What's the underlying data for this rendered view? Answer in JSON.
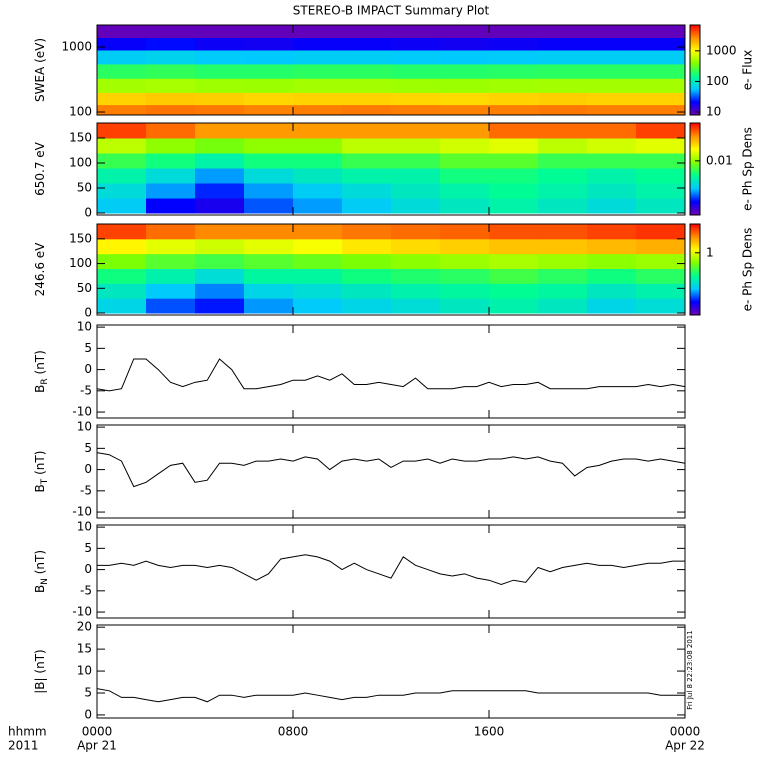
{
  "chart_data": [
    {
      "type": "heatmap",
      "title": "STEREO-B IMPACT Summary Plot",
      "ylabel": "SWEA (eV)",
      "xlim": [
        0,
        24
      ],
      "xbins": [
        0,
        2,
        4,
        6,
        8,
        10,
        12,
        14,
        16,
        18,
        20,
        22,
        24
      ],
      "ylim": [
        90,
        2180
      ],
      "ylog": true,
      "yticks": [
        100,
        1000
      ],
      "ybins": [
        90,
        130,
        200,
        330,
        550,
        900,
        1400,
        2180
      ],
      "values": [
        [
          3000,
          3200,
          3100,
          2900,
          3000,
          3100,
          3000,
          2900,
          3000,
          3100,
          3000,
          3000
        ],
        [
          1500,
          1600,
          1550,
          1450,
          1500,
          1500,
          1450,
          1400,
          1500,
          1550,
          1500,
          1500
        ],
        [
          500,
          520,
          480,
          470,
          500,
          500,
          480,
          470,
          490,
          500,
          500,
          500
        ],
        [
          200,
          210,
          190,
          190,
          200,
          200,
          190,
          190,
          195,
          200,
          200,
          200
        ],
        [
          60,
          65,
          58,
          56,
          60,
          60,
          58,
          56,
          58,
          60,
          60,
          60
        ],
        [
          20,
          22,
          19,
          18,
          20,
          20,
          19,
          18,
          19,
          20,
          20,
          20
        ],
        [
          9,
          9,
          9,
          9,
          9,
          9,
          9,
          9,
          9,
          9,
          9,
          9
        ]
      ],
      "clim": [
        8,
        7000
      ],
      "clog": true,
      "cticks": [
        10,
        100,
        1000
      ],
      "clabel": "e- Flux",
      "colormap": [
        "#7000b0",
        "#0000ff",
        "#00c8ff",
        "#00ff90",
        "#80ff00",
        "#ffff00",
        "#ff9000",
        "#ff0000"
      ]
    },
    {
      "type": "heatmap",
      "ylabel": "650.7 eV",
      "xlim": [
        0,
        24
      ],
      "xbins": [
        0,
        2,
        4,
        6,
        8,
        10,
        12,
        14,
        16,
        18,
        20,
        22,
        24
      ],
      "ylim": [
        -4,
        180
      ],
      "yticks": [
        0,
        50,
        100,
        150
      ],
      "ybins": [
        0,
        30,
        60,
        90,
        120,
        150,
        180
      ],
      "values": [
        [
          0.0035,
          0.002,
          0.0018,
          0.0025,
          0.003,
          0.0035,
          0.004,
          0.0045,
          0.005,
          0.0045,
          0.004,
          0.0045
        ],
        [
          0.004,
          0.003,
          0.0022,
          0.003,
          0.0035,
          0.004,
          0.0045,
          0.005,
          0.0055,
          0.005,
          0.0045,
          0.005
        ],
        [
          0.005,
          0.004,
          0.003,
          0.004,
          0.0045,
          0.005,
          0.005,
          0.006,
          0.006,
          0.0055,
          0.005,
          0.0055
        ],
        [
          0.007,
          0.006,
          0.005,
          0.006,
          0.006,
          0.007,
          0.007,
          0.008,
          0.008,
          0.007,
          0.007,
          0.007
        ],
        [
          0.012,
          0.01,
          0.009,
          0.01,
          0.01,
          0.012,
          0.012,
          0.013,
          0.014,
          0.012,
          0.013,
          0.014
        ],
        [
          0.035,
          0.03,
          0.025,
          0.025,
          0.025,
          0.025,
          0.025,
          0.025,
          0.03,
          0.03,
          0.03,
          0.035
        ]
      ],
      "clim": [
        0.0012,
        0.044
      ],
      "clog": true,
      "cticks": [
        0.01
      ],
      "clabel": "e- Ph Sp Dens",
      "colormap": [
        "#7000b0",
        "#0000ff",
        "#00c8ff",
        "#00ff90",
        "#80ff00",
        "#ffff00",
        "#ff9000",
        "#ff0000"
      ]
    },
    {
      "type": "heatmap",
      "ylabel": "246.6 eV",
      "xlim": [
        0,
        24
      ],
      "xbins": [
        0,
        2,
        4,
        6,
        8,
        10,
        12,
        14,
        16,
        18,
        20,
        22,
        24
      ],
      "ylim": [
        -4,
        180
      ],
      "yticks": [
        0,
        50,
        100,
        150
      ],
      "ybins": [
        0,
        30,
        60,
        90,
        120,
        150,
        180
      ],
      "values": [
        [
          0.2,
          0.12,
          0.1,
          0.15,
          0.18,
          0.2,
          0.22,
          0.25,
          0.28,
          0.25,
          0.2,
          0.22
        ],
        [
          0.25,
          0.18,
          0.14,
          0.2,
          0.22,
          0.25,
          0.28,
          0.3,
          0.32,
          0.3,
          0.25,
          0.28
        ],
        [
          0.35,
          0.28,
          0.22,
          0.3,
          0.3,
          0.35,
          0.38,
          0.4,
          0.45,
          0.4,
          0.35,
          0.4
        ],
        [
          0.6,
          0.5,
          0.45,
          0.5,
          0.55,
          0.6,
          0.65,
          0.7,
          0.75,
          0.7,
          0.65,
          0.7
        ],
        [
          1.2,
          1,
          0.9,
          1,
          1.1,
          1.3,
          1.4,
          1.5,
          1.6,
          1.6,
          1.7,
          1.8
        ],
        [
          3,
          2.5,
          2.2,
          2.2,
          2.2,
          2.4,
          2.5,
          2.6,
          2.8,
          2.8,
          3,
          3.2
        ]
      ],
      "clim": [
        0.05,
        4
      ],
      "clog": true,
      "cticks": [
        1
      ],
      "clabel": "e- Ph Sp Dens",
      "colormap": [
        "#7000b0",
        "#0000ff",
        "#00c8ff",
        "#00ff90",
        "#80ff00",
        "#ffff00",
        "#ff9000",
        "#ff0000"
      ]
    },
    {
      "type": "line",
      "ylabel": "B",
      "ylabel_sub": "R",
      "ylabel_unit": "(nT)",
      "xlim": [
        0,
        24
      ],
      "ylim": [
        -11.4,
        10.5
      ],
      "yticks": [
        -10,
        -5,
        0,
        5,
        10
      ],
      "color": "#000000",
      "x": [
        0,
        0.5,
        1,
        1.5,
        2,
        2.5,
        3,
        3.5,
        4,
        4.5,
        5,
        5.5,
        6,
        6.5,
        7,
        7.5,
        8,
        8.5,
        9,
        9.5,
        10,
        10.5,
        11,
        11.5,
        12,
        12.5,
        13,
        13.5,
        14,
        14.5,
        15,
        15.5,
        16,
        16.5,
        17,
        17.5,
        18,
        18.5,
        19,
        19.5,
        20,
        20.5,
        21,
        21.5,
        22,
        22.5,
        23,
        23.5,
        24
      ],
      "values": [
        -4.5,
        -5,
        -4.5,
        2.5,
        2.5,
        0,
        -3,
        -4,
        -3,
        -2.5,
        2.5,
        0,
        -4.5,
        -4.5,
        -4,
        -3.5,
        -2.5,
        -2.5,
        -1.5,
        -2.5,
        -1,
        -3.5,
        -3.5,
        -3,
        -3.5,
        -4,
        -2,
        -4.5,
        -4.5,
        -4.5,
        -4,
        -4,
        -3,
        -4,
        -3.5,
        -3.5,
        -3,
        -4.5,
        -4.5,
        -4.5,
        -4.5,
        -4,
        -4,
        -4,
        -4,
        -3.5,
        -4,
        -3.5,
        -4
      ]
    },
    {
      "type": "line",
      "ylabel": "B",
      "ylabel_sub": "T",
      "ylabel_unit": "(nT)",
      "xlim": [
        0,
        24
      ],
      "ylim": [
        -11.4,
        10.5
      ],
      "yticks": [
        -10,
        -5,
        0,
        5,
        10
      ],
      "color": "#000000",
      "x": [
        0,
        0.5,
        1,
        1.5,
        2,
        2.5,
        3,
        3.5,
        4,
        4.5,
        5,
        5.5,
        6,
        6.5,
        7,
        7.5,
        8,
        8.5,
        9,
        9.5,
        10,
        10.5,
        11,
        11.5,
        12,
        12.5,
        13,
        13.5,
        14,
        14.5,
        15,
        15.5,
        16,
        16.5,
        17,
        17.5,
        18,
        18.5,
        19,
        19.5,
        20,
        20.5,
        21,
        21.5,
        22,
        22.5,
        23,
        23.5,
        24
      ],
      "values": [
        4,
        3.5,
        2,
        -4,
        -3,
        -1,
        1,
        1.5,
        -3,
        -2.5,
        1.5,
        1.5,
        1,
        2,
        2,
        2.5,
        2,
        3,
        2.5,
        0,
        2,
        2.5,
        2,
        2.5,
        0.5,
        2,
        2,
        2.5,
        1.5,
        2.5,
        2,
        2,
        2.5,
        2.5,
        3,
        2.5,
        3,
        2,
        1.5,
        -1.5,
        0.5,
        1,
        2,
        2.5,
        2.5,
        2,
        2.5,
        2,
        1.5
      ]
    },
    {
      "type": "line",
      "ylabel": "B",
      "ylabel_sub": "N",
      "ylabel_unit": "(nT)",
      "xlim": [
        0,
        24
      ],
      "ylim": [
        -11.4,
        10.5
      ],
      "yticks": [
        -10,
        -5,
        0,
        5,
        10
      ],
      "color": "#000000",
      "x": [
        0,
        0.5,
        1,
        1.5,
        2,
        2.5,
        3,
        3.5,
        4,
        4.5,
        5,
        5.5,
        6,
        6.5,
        7,
        7.5,
        8,
        8.5,
        9,
        9.5,
        10,
        10.5,
        11,
        11.5,
        12,
        12.5,
        13,
        13.5,
        14,
        14.5,
        15,
        15.5,
        16,
        16.5,
        17,
        17.5,
        18,
        18.5,
        19,
        19.5,
        20,
        20.5,
        21,
        21.5,
        22,
        22.5,
        23,
        23.5,
        24
      ],
      "values": [
        1,
        1,
        1.5,
        1,
        2,
        1,
        0.5,
        1,
        1,
        0.5,
        1,
        0.5,
        -1,
        -2.5,
        -1,
        2.5,
        3,
        3.5,
        3,
        2,
        0,
        1.5,
        0,
        -1,
        -2,
        3,
        1,
        0,
        -1,
        -1.5,
        -1,
        -2,
        -2.5,
        -3.5,
        -2.5,
        -3,
        0.5,
        -0.5,
        0.5,
        1,
        1.5,
        1,
        1,
        0.5,
        1,
        1.5,
        1.5,
        2,
        2
      ]
    },
    {
      "type": "line",
      "ylabel": "|B|",
      "ylabel_unit": "(nT)",
      "xlim": [
        0,
        24
      ],
      "ylim": [
        -0.7,
        20.5
      ],
      "yticks": [
        0,
        5,
        10,
        15,
        20
      ],
      "color": "#000000",
      "x": [
        0,
        0.5,
        1,
        1.5,
        2,
        2.5,
        3,
        3.5,
        4,
        4.5,
        5,
        5.5,
        6,
        6.5,
        7,
        7.5,
        8,
        8.5,
        9,
        9.5,
        10,
        10.5,
        11,
        11.5,
        12,
        12.5,
        13,
        13.5,
        14,
        14.5,
        15,
        15.5,
        16,
        16.5,
        17,
        17.5,
        18,
        18.5,
        19,
        19.5,
        20,
        20.5,
        21,
        21.5,
        22,
        22.5,
        23,
        23.5,
        24
      ],
      "values": [
        6,
        5.5,
        4,
        4,
        3.5,
        3,
        3.5,
        4,
        4,
        3,
        4.5,
        4.5,
        4,
        4.5,
        4.5,
        4.5,
        4.5,
        5,
        4.5,
        4,
        3.5,
        4,
        4,
        4.5,
        4.5,
        4.5,
        5,
        5,
        5,
        5.5,
        5.5,
        5.5,
        5.5,
        5.5,
        5.5,
        5.5,
        5,
        5,
        5,
        5,
        5,
        5,
        5,
        5,
        5,
        5,
        4.5,
        4.5,
        4.5
      ],
      "xticks": [
        {
          "value": 0,
          "label": "0000"
        },
        {
          "value": 8,
          "label": "0800"
        },
        {
          "value": 16,
          "label": "1600"
        },
        {
          "value": 24,
          "label": "0000"
        }
      ],
      "xtick_dates": [
        {
          "value": 0,
          "label": "Apr 21"
        },
        {
          "value": 24,
          "label": "Apr 22"
        }
      ],
      "x_row_labels": [
        "hhmm",
        "2011"
      ],
      "annotation": "Fri Jul  8 22:23:08 2011"
    }
  ]
}
